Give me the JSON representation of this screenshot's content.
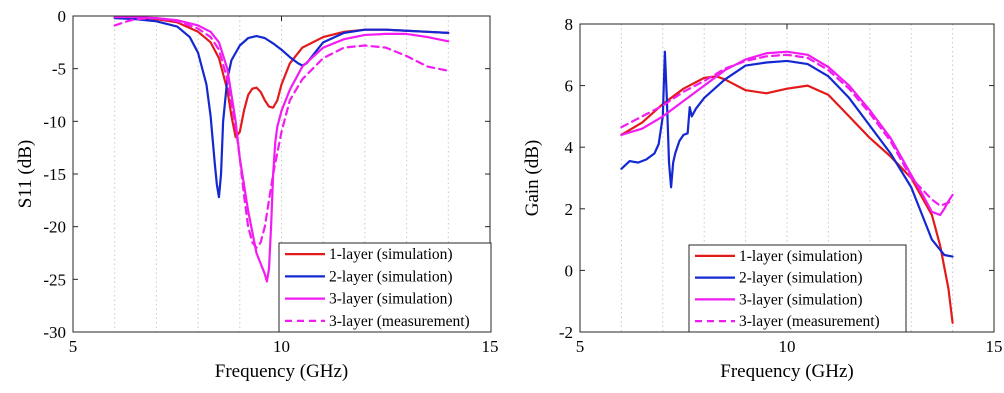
{
  "chart_data": [
    {
      "type": "line",
      "xlabel": "Frequency (GHz)",
      "ylabel": "S11 (dB)",
      "xlim": [
        5,
        15
      ],
      "ylim": [
        -30,
        0
      ],
      "xticks": [
        5,
        10,
        15
      ],
      "yticks": [
        0,
        -5,
        -10,
        -15,
        -20,
        -25,
        -30
      ],
      "grid": "x-minor-dotted",
      "legend_position": "bottom-right",
      "series": [
        {
          "name": "1-layer (simulation)",
          "color": "#e31a1a",
          "style": "solid",
          "x": [
            6.0,
            6.5,
            7.0,
            7.5,
            8.0,
            8.3,
            8.5,
            8.7,
            8.8,
            8.9,
            9.0,
            9.1,
            9.2,
            9.3,
            9.4,
            9.5,
            9.6,
            9.7,
            9.8,
            9.9,
            10.0,
            10.2,
            10.5,
            11.0,
            11.5,
            12.0,
            12.5,
            13.0,
            13.5,
            14.0
          ],
          "y": [
            -0.1,
            -0.2,
            -0.3,
            -0.6,
            -1.5,
            -2.5,
            -4.0,
            -7.0,
            -9.5,
            -11.5,
            -11.0,
            -9.0,
            -7.5,
            -6.9,
            -6.8,
            -7.2,
            -8.0,
            -8.6,
            -8.7,
            -8.0,
            -6.5,
            -4.5,
            -3.0,
            -2.0,
            -1.5,
            -1.3,
            -1.3,
            -1.4,
            -1.5,
            -1.6
          ]
        },
        {
          "name": "2-layer (simulation)",
          "color": "#1428d2",
          "style": "solid",
          "x": [
            6.0,
            6.5,
            7.0,
            7.5,
            7.8,
            8.0,
            8.2,
            8.3,
            8.4,
            8.45,
            8.5,
            8.55,
            8.6,
            8.7,
            8.8,
            9.0,
            9.2,
            9.4,
            9.6,
            9.8,
            10.0,
            10.2,
            10.4,
            10.5,
            10.6,
            10.8,
            11.0,
            11.5,
            12.0,
            12.5,
            13.0,
            13.5,
            14.0
          ],
          "y": [
            -0.2,
            -0.3,
            -0.5,
            -1.0,
            -2.0,
            -3.5,
            -6.5,
            -9.5,
            -14.0,
            -16.0,
            -17.2,
            -15.0,
            -10.0,
            -6.0,
            -4.2,
            -2.8,
            -2.1,
            -1.9,
            -2.1,
            -2.6,
            -3.2,
            -3.9,
            -4.5,
            -4.7,
            -4.5,
            -3.5,
            -2.5,
            -1.6,
            -1.3,
            -1.3,
            -1.4,
            -1.5,
            -1.6
          ]
        },
        {
          "name": "3-layer (simulation)",
          "color": "#f21cf2",
          "style": "solid",
          "x": [
            6.0,
            6.5,
            7.0,
            7.5,
            8.0,
            8.3,
            8.5,
            8.7,
            8.9,
            9.0,
            9.1,
            9.2,
            9.3,
            9.4,
            9.5,
            9.6,
            9.65,
            9.7,
            9.75,
            9.8,
            9.85,
            9.9,
            10.0,
            10.2,
            10.5,
            11.0,
            11.5,
            12.0,
            12.5,
            13.0,
            13.5,
            14.0
          ],
          "y": [
            -0.1,
            -0.1,
            -0.2,
            -0.4,
            -0.9,
            -1.5,
            -2.5,
            -5.0,
            -10.0,
            -13.5,
            -16.0,
            -18.5,
            -20.5,
            -22.5,
            -23.5,
            -24.5,
            -25.2,
            -24.0,
            -20.0,
            -15.0,
            -12.0,
            -10.5,
            -9.0,
            -7.0,
            -4.8,
            -3.0,
            -2.2,
            -1.8,
            -1.7,
            -1.7,
            -2.0,
            -2.4
          ]
        },
        {
          "name": "3-layer (measurement)",
          "color": "#f21cf2",
          "style": "dashed",
          "x": [
            6.0,
            6.3,
            6.5,
            7.0,
            7.5,
            8.0,
            8.3,
            8.5,
            8.7,
            8.9,
            9.0,
            9.1,
            9.2,
            9.3,
            9.4,
            9.5,
            9.6,
            9.7,
            9.8,
            9.9,
            10.0,
            10.2,
            10.5,
            11.0,
            11.5,
            12.0,
            12.5,
            13.0,
            13.5,
            14.0
          ],
          "y": [
            -0.9,
            -0.5,
            -0.3,
            -0.2,
            -0.5,
            -1.2,
            -2.0,
            -3.2,
            -6.0,
            -10.5,
            -13.5,
            -17.0,
            -20.0,
            -21.5,
            -22.0,
            -21.5,
            -20.0,
            -17.5,
            -15.0,
            -13.0,
            -11.0,
            -8.0,
            -6.0,
            -4.0,
            -3.0,
            -2.8,
            -3.0,
            -3.8,
            -4.8,
            -5.2
          ]
        }
      ]
    },
    {
      "type": "line",
      "xlabel": "Frequency (GHz)",
      "ylabel": "Gain (dB)",
      "xlim": [
        5,
        15
      ],
      "ylim": [
        -2,
        8
      ],
      "xticks": [
        5,
        10,
        15
      ],
      "yticks": [
        8,
        6,
        4,
        2,
        0,
        -2
      ],
      "grid": "x-minor-dotted",
      "legend_position": "bottom-left",
      "series": [
        {
          "name": "1-layer (simulation)",
          "color": "#e31a1a",
          "style": "solid",
          "x": [
            6.0,
            6.5,
            7.0,
            7.5,
            8.0,
            8.3,
            8.5,
            9.0,
            9.5,
            10.0,
            10.5,
            11.0,
            11.5,
            12.0,
            12.5,
            13.0,
            13.5,
            13.7,
            13.9,
            14.0
          ],
          "y": [
            4.4,
            4.8,
            5.4,
            5.9,
            6.25,
            6.3,
            6.2,
            5.85,
            5.75,
            5.9,
            6.0,
            5.7,
            5.0,
            4.3,
            3.7,
            3.0,
            1.8,
            0.8,
            -0.6,
            -1.7
          ]
        },
        {
          "name": "2-layer (simulation)",
          "color": "#1428d2",
          "style": "solid",
          "x": [
            6.0,
            6.2,
            6.4,
            6.6,
            6.8,
            6.9,
            7.0,
            7.05,
            7.1,
            7.15,
            7.2,
            7.25,
            7.3,
            7.4,
            7.5,
            7.6,
            7.65,
            7.7,
            7.8,
            8.0,
            8.5,
            9.0,
            9.5,
            10.0,
            10.5,
            11.0,
            11.5,
            12.0,
            12.5,
            13.0,
            13.5,
            13.8,
            14.0
          ],
          "y": [
            3.3,
            3.55,
            3.5,
            3.6,
            3.8,
            4.1,
            5.0,
            7.1,
            5.5,
            3.5,
            2.7,
            3.5,
            3.8,
            4.2,
            4.4,
            4.45,
            5.3,
            5.0,
            5.25,
            5.6,
            6.2,
            6.65,
            6.75,
            6.8,
            6.7,
            6.3,
            5.6,
            4.7,
            3.8,
            2.7,
            1.0,
            0.5,
            0.45
          ]
        },
        {
          "name": "3-layer (simulation)",
          "color": "#f21cf2",
          "style": "solid",
          "x": [
            6.0,
            6.5,
            7.0,
            7.5,
            8.0,
            8.5,
            9.0,
            9.5,
            10.0,
            10.5,
            11.0,
            11.5,
            12.0,
            12.5,
            13.0,
            13.3,
            13.5,
            13.7,
            13.8,
            13.9,
            14.0
          ],
          "y": [
            4.4,
            4.6,
            5.0,
            5.5,
            6.0,
            6.5,
            6.85,
            7.05,
            7.1,
            7.0,
            6.6,
            6.0,
            5.2,
            4.3,
            3.1,
            2.4,
            1.9,
            1.8,
            2.0,
            2.25,
            2.45
          ]
        },
        {
          "name": "3-layer (measurement)",
          "color": "#f21cf2",
          "style": "dashed",
          "x": [
            6.0,
            6.5,
            7.0,
            7.5,
            8.0,
            8.5,
            9.0,
            9.5,
            10.0,
            10.5,
            11.0,
            11.5,
            12.0,
            12.5,
            13.0,
            13.5,
            13.7,
            13.9,
            14.0
          ],
          "y": [
            4.65,
            5.0,
            5.35,
            5.8,
            6.15,
            6.55,
            6.8,
            6.95,
            7.0,
            6.9,
            6.5,
            5.9,
            5.1,
            4.2,
            3.0,
            2.3,
            2.1,
            2.2,
            2.3
          ]
        }
      ]
    }
  ]
}
